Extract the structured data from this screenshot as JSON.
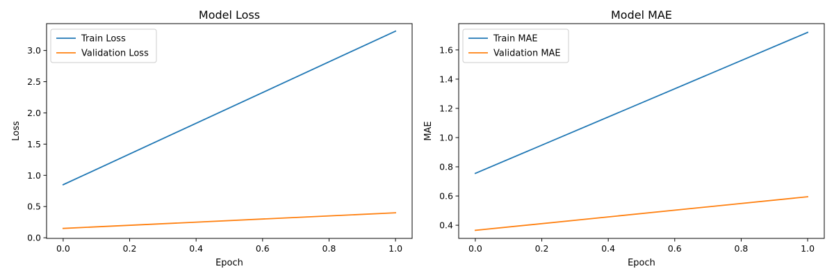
{
  "chart_data": [
    {
      "type": "line",
      "title": "Model Loss",
      "xlabel": "Epoch",
      "ylabel": "Loss",
      "xlim": [
        -0.05,
        1.05
      ],
      "ylim": [
        -0.01,
        3.43
      ],
      "xticks": [
        0.0,
        0.2,
        0.4,
        0.6,
        0.8,
        1.0
      ],
      "xtick_labels": [
        "0.0",
        "0.2",
        "0.4",
        "0.6",
        "0.8",
        "1.0"
      ],
      "yticks": [
        0.0,
        0.5,
        1.0,
        1.5,
        2.0,
        2.5,
        3.0
      ],
      "ytick_labels": [
        "0.0",
        "0.5",
        "1.0",
        "1.5",
        "2.0",
        "2.5",
        "3.0"
      ],
      "grid": false,
      "legend_position": "upper-left",
      "series": [
        {
          "name": "Train Loss",
          "color": "#1f77b4",
          "x": [
            0,
            1
          ],
          "y": [
            0.85,
            3.31
          ]
        },
        {
          "name": "Validation Loss",
          "color": "#ff7f0e",
          "x": [
            0,
            1
          ],
          "y": [
            0.15,
            0.4
          ]
        }
      ]
    },
    {
      "type": "line",
      "title": "Model MAE",
      "xlabel": "Epoch",
      "ylabel": "MAE",
      "xlim": [
        -0.05,
        1.05
      ],
      "ylim": [
        0.31,
        1.78
      ],
      "xticks": [
        0.0,
        0.2,
        0.4,
        0.6,
        0.8,
        1.0
      ],
      "xtick_labels": [
        "0.0",
        "0.2",
        "0.4",
        "0.6",
        "0.8",
        "1.0"
      ],
      "yticks": [
        0.4,
        0.6,
        0.8,
        1.0,
        1.2,
        1.4,
        1.6
      ],
      "ytick_labels": [
        "0.4",
        "0.6",
        "0.8",
        "1.0",
        "1.2",
        "1.4",
        "1.6"
      ],
      "grid": false,
      "legend_position": "upper-left",
      "series": [
        {
          "name": "Train MAE",
          "color": "#1f77b4",
          "x": [
            0,
            1
          ],
          "y": [
            0.755,
            1.72
          ]
        },
        {
          "name": "Validation MAE",
          "color": "#ff7f0e",
          "x": [
            0,
            1
          ],
          "y": [
            0.365,
            0.595
          ]
        }
      ]
    }
  ]
}
